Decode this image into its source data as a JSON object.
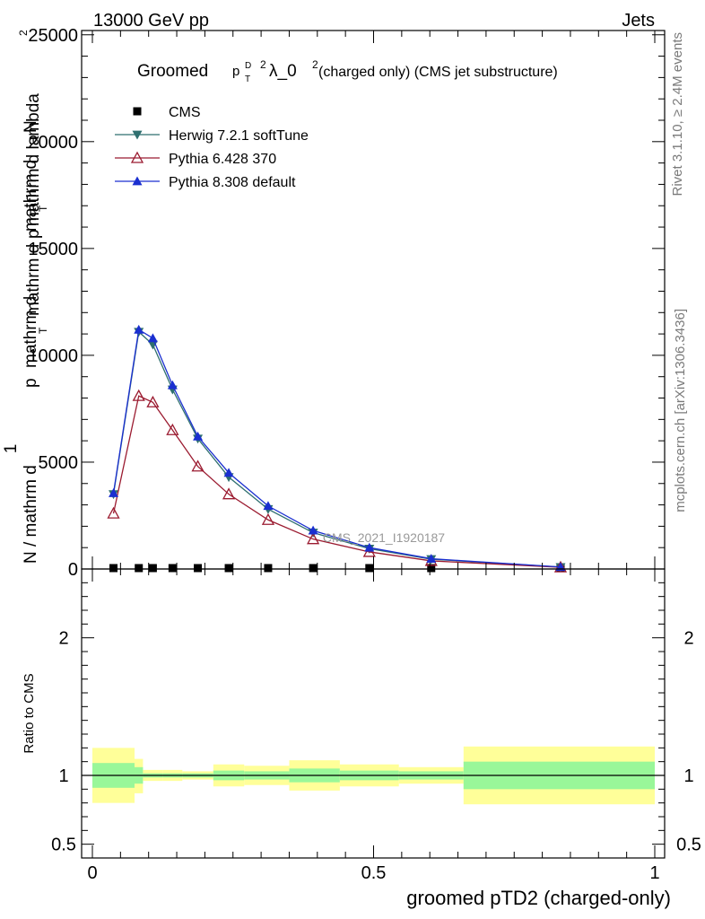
{
  "header": {
    "left": "13000 GeV pp",
    "right": "Jets"
  },
  "side_labels": {
    "rivet": "Rivet 3.1.10, ≥ 2.4M events",
    "mcplots": "mcplots.cern.ch [arXiv:1306.3436]"
  },
  "watermark": "CMS_2021_I1920187",
  "colors": {
    "cms": "#000000",
    "herwig": "#2e6f6f",
    "pythia6": "#9b1b30",
    "pythia8": "#1a2fd0",
    "band_inner": "#99f799",
    "band_outer": "#ffff99"
  },
  "chart_data": [
    {
      "type": "line",
      "title_prefix": "Groomed",
      "title_suffix": "λ_0",
      "title_tail": " (charged only) (CMS jet substructure)",
      "title_p": "p",
      "title_sup_d": "D",
      "title_sub_t": "T",
      "title_sup_2": "2",
      "title_sup_2b": "2",
      "ylabel_parts": [
        "1",
        "mathrm d",
        "N / mathrm d",
        "p",
        "mathrm d",
        "N",
        "mathrm d",
        "p",
        "mathrm d lambda"
      ],
      "ylabel_subs": [
        "T",
        "T"
      ],
      "ylabel_sup": "2",
      "xlim": [
        0,
        1
      ],
      "ylim": [
        0,
        25200
      ],
      "y_ticks": [
        0,
        5000,
        10000,
        15000,
        20000,
        25000
      ],
      "y_tick_labels": [
        "0",
        "5000",
        "10000",
        "15000",
        "20000",
        "25000"
      ],
      "x": [
        0.0375,
        0.0825,
        0.1075,
        0.1425,
        0.1875,
        0.2425,
        0.3125,
        0.3925,
        0.4925,
        0.6025,
        0.8325
      ],
      "legend": {
        "position": "top-left"
      },
      "series": [
        {
          "name": "CMS",
          "marker": "square",
          "values": [
            20,
            25,
            30,
            30,
            28,
            25,
            20,
            18,
            15,
            10,
            5
          ]
        },
        {
          "name": "Herwig 7.2.1 softTune",
          "marker": "triangle-down",
          "values": [
            3500,
            11100,
            10500,
            8400,
            6100,
            4300,
            2800,
            1700,
            950,
            460,
            90
          ]
        },
        {
          "name": "Pythia 6.428 370",
          "marker": "triangle-open",
          "values": [
            2600,
            8100,
            7800,
            6500,
            4800,
            3500,
            2300,
            1400,
            800,
            380,
            80
          ]
        },
        {
          "name": "Pythia 8.308 default",
          "marker": "triangle-up",
          "values": [
            3550,
            11200,
            10800,
            8600,
            6200,
            4500,
            2950,
            1800,
            1000,
            480,
            95
          ]
        }
      ]
    },
    {
      "type": "area",
      "ylabel": "Ratio to CMS",
      "xlabel": "groomed pTD2 (charged-only)",
      "xlim": [
        0,
        1
      ],
      "ylim": [
        0.4,
        2.5
      ],
      "x_ticks": [
        0,
        0.5,
        1
      ],
      "x_tick_labels": [
        "0",
        "0.5",
        "1"
      ],
      "y_ticks": [
        0.5,
        1,
        2
      ],
      "y_tick_labels": [
        "0.5",
        "1",
        "2"
      ],
      "bins": [
        0,
        0.075,
        0.09,
        0.125,
        0.16,
        0.215,
        0.27,
        0.35,
        0.44,
        0.545,
        0.66,
        1.0
      ],
      "inner_lo": [
        0.91,
        0.94,
        0.985,
        0.985,
        0.985,
        0.965,
        0.97,
        0.95,
        0.965,
        0.97,
        0.9
      ],
      "inner_hi": [
        1.09,
        1.06,
        1.015,
        1.015,
        1.015,
        1.035,
        1.03,
        1.05,
        1.035,
        1.03,
        1.1
      ],
      "outer_lo": [
        0.8,
        0.87,
        0.96,
        0.96,
        0.97,
        0.92,
        0.93,
        0.89,
        0.92,
        0.94,
        0.79
      ],
      "outer_hi": [
        1.2,
        1.12,
        1.04,
        1.04,
        1.03,
        1.08,
        1.07,
        1.11,
        1.08,
        1.06,
        1.21
      ],
      "reference": 1
    }
  ]
}
